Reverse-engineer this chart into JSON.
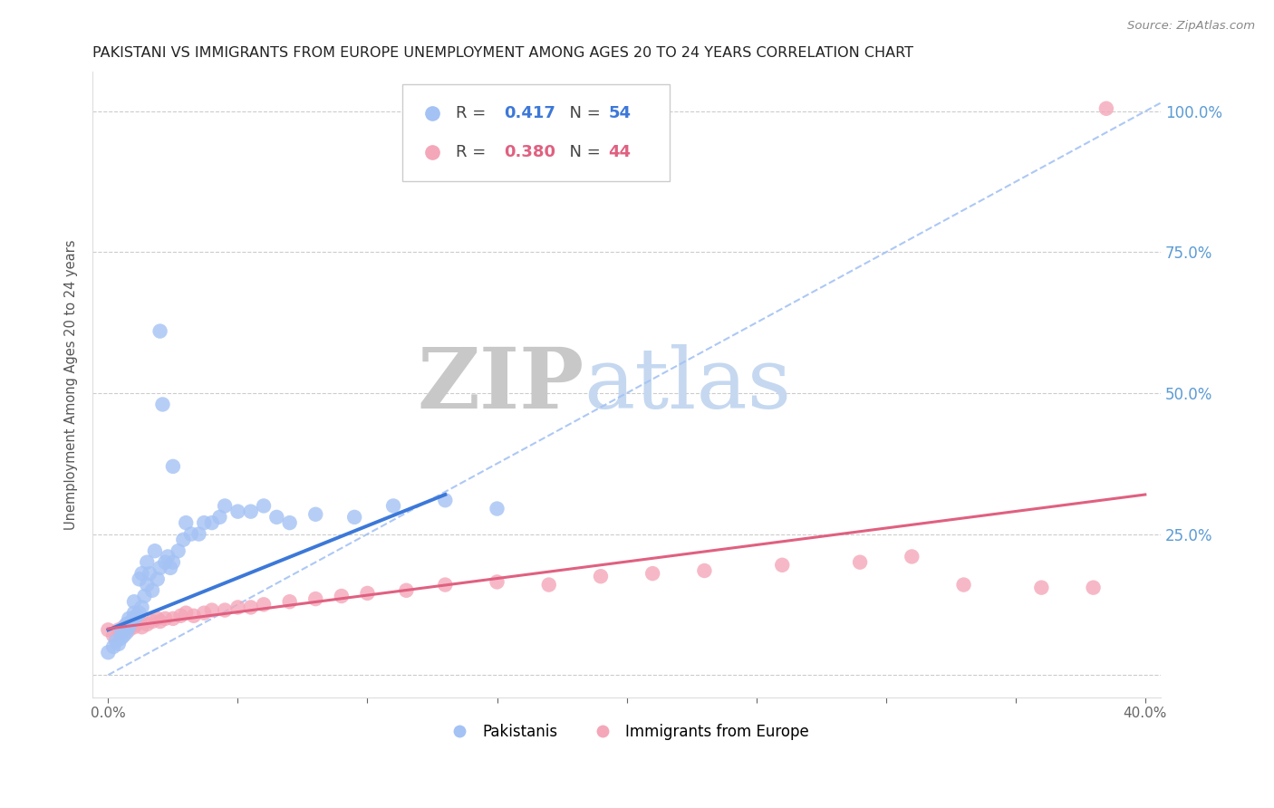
{
  "title": "PAKISTANI VS IMMIGRANTS FROM EUROPE UNEMPLOYMENT AMONG AGES 20 TO 24 YEARS CORRELATION CHART",
  "source": "Source: ZipAtlas.com",
  "ylabel": "Unemployment Among Ages 20 to 24 years",
  "xlim": [
    -0.006,
    0.406
  ],
  "ylim": [
    -0.04,
    1.07
  ],
  "pakistani_R": 0.417,
  "pakistani_N": 54,
  "europe_R": 0.38,
  "europe_N": 44,
  "pakistani_color": "#a4c2f4",
  "europe_color": "#f4a7b9",
  "pakistani_line_color": "#3c78d8",
  "europe_line_color": "#e06080",
  "diagonal_color": "#a4c2f4",
  "background_color": "#ffffff",
  "title_fontsize": 11.5,
  "axis_label_fontsize": 10.5,
  "tick_fontsize": 11,
  "legend_fontsize": 14,
  "pakistani_x": [
    0.0,
    0.002,
    0.003,
    0.004,
    0.005,
    0.005,
    0.006,
    0.007,
    0.007,
    0.008,
    0.008,
    0.009,
    0.01,
    0.01,
    0.01,
    0.011,
    0.012,
    0.012,
    0.013,
    0.013,
    0.014,
    0.015,
    0.015,
    0.016,
    0.017,
    0.018,
    0.019,
    0.02,
    0.02,
    0.021,
    0.022,
    0.023,
    0.024,
    0.025,
    0.025,
    0.027,
    0.029,
    0.03,
    0.032,
    0.035,
    0.037,
    0.04,
    0.043,
    0.045,
    0.05,
    0.055,
    0.06,
    0.065,
    0.07,
    0.08,
    0.095,
    0.11,
    0.13,
    0.15
  ],
  "pakistani_y": [
    0.04,
    0.05,
    0.06,
    0.055,
    0.065,
    0.08,
    0.07,
    0.075,
    0.09,
    0.085,
    0.1,
    0.095,
    0.1,
    0.11,
    0.13,
    0.105,
    0.11,
    0.17,
    0.12,
    0.18,
    0.14,
    0.16,
    0.2,
    0.18,
    0.15,
    0.22,
    0.17,
    0.61,
    0.19,
    0.48,
    0.2,
    0.21,
    0.19,
    0.37,
    0.2,
    0.22,
    0.24,
    0.27,
    0.25,
    0.25,
    0.27,
    0.27,
    0.28,
    0.3,
    0.29,
    0.29,
    0.3,
    0.28,
    0.27,
    0.285,
    0.28,
    0.3,
    0.31,
    0.295
  ],
  "europe_x": [
    0.0,
    0.002,
    0.004,
    0.005,
    0.006,
    0.008,
    0.009,
    0.01,
    0.011,
    0.012,
    0.013,
    0.015,
    0.017,
    0.019,
    0.02,
    0.022,
    0.025,
    0.028,
    0.03,
    0.033,
    0.037,
    0.04,
    0.045,
    0.05,
    0.055,
    0.06,
    0.07,
    0.08,
    0.09,
    0.1,
    0.115,
    0.13,
    0.15,
    0.17,
    0.19,
    0.21,
    0.23,
    0.26,
    0.29,
    0.31,
    0.33,
    0.36,
    0.38,
    0.385
  ],
  "europe_y": [
    0.08,
    0.07,
    0.08,
    0.075,
    0.085,
    0.08,
    0.09,
    0.085,
    0.09,
    0.095,
    0.085,
    0.09,
    0.095,
    0.1,
    0.095,
    0.1,
    0.1,
    0.105,
    0.11,
    0.105,
    0.11,
    0.115,
    0.115,
    0.12,
    0.12,
    0.125,
    0.13,
    0.135,
    0.14,
    0.145,
    0.15,
    0.16,
    0.165,
    0.16,
    0.175,
    0.18,
    0.185,
    0.195,
    0.2,
    0.21,
    0.16,
    0.155,
    0.155,
    1.005
  ],
  "pak_line_x": [
    0.0,
    0.13
  ],
  "pak_line_y": [
    0.08,
    0.32
  ],
  "eur_line_x": [
    0.0,
    0.4
  ],
  "eur_line_y": [
    0.082,
    0.32
  ]
}
